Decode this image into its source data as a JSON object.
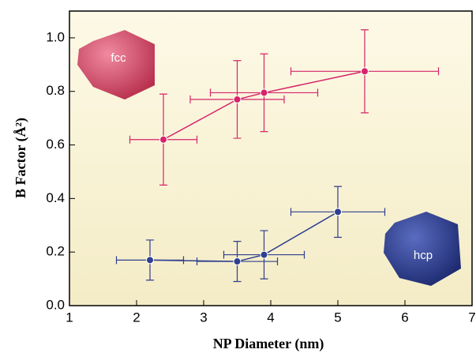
{
  "chart_data": {
    "type": "scatter-line",
    "xlabel": "NP Diameter (nm)",
    "ylabel": "B Factor (Å²)",
    "xlim": [
      1,
      7
    ],
    "ylim": [
      0,
      1.1
    ],
    "xticks": [
      1,
      2,
      3,
      4,
      5,
      6,
      7
    ],
    "yticks": [
      {
        "value": 0,
        "label": "0.0"
      },
      0.2,
      0.4,
      0.6,
      0.8,
      {
        "value": 1,
        "label": "1.0"
      }
    ],
    "annotations": [
      "fcc",
      "hcp"
    ],
    "series": [
      {
        "color": "#d6246a",
        "x": [
          2.4,
          3.5,
          3.9,
          5.4
        ],
        "values": [
          0.62,
          0.77,
          0.795,
          0.875
        ],
        "x_err": [
          0.5,
          0.7,
          0.8,
          1.1
        ],
        "y_err": [
          0.17,
          0.145,
          0.145,
          0.155
        ]
      },
      {
        "color": "#2e3f8f",
        "x": [
          2.2,
          3.5,
          3.9,
          5.0
        ],
        "values": [
          0.17,
          0.165,
          0.19,
          0.35
        ],
        "x_err": [
          0.5,
          0.6,
          0.6,
          0.7
        ],
        "y_err": [
          0.075,
          0.075,
          0.09,
          0.095
        ]
      }
    ]
  }
}
